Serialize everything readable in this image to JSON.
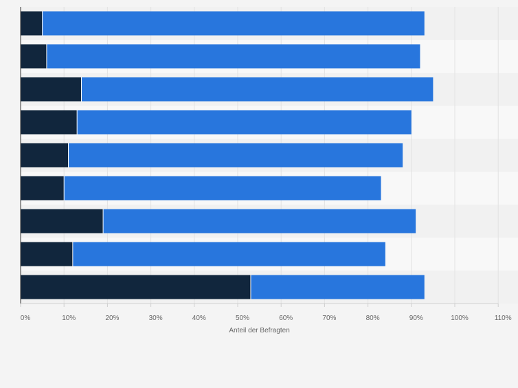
{
  "chart_data": {
    "type": "bar",
    "orientation": "horizontal",
    "stacked": true,
    "categories": [
      "",
      "",
      "",
      "",
      "",
      "",
      "",
      "",
      ""
    ],
    "series": [
      {
        "values": [
          5,
          6,
          14,
          13,
          11,
          10,
          19,
          12,
          53
        ]
      },
      {
        "values": [
          88,
          86,
          81,
          77,
          77,
          73,
          72,
          72,
          40
        ]
      }
    ],
    "xlabel": "Anteil der Befragten",
    "xlim": [
      0,
      110
    ],
    "xticks": [
      "0%",
      "10%",
      "20%",
      "30%",
      "40%",
      "50%",
      "60%",
      "70%",
      "80%",
      "90%",
      "100%",
      "110%"
    ],
    "grid": true,
    "colors": {
      "series_0": "#11263d",
      "series_1": "#2876dd",
      "band_a": "#f1f1f1",
      "band_b": "#f8f8f8",
      "background": "#f4f4f4"
    }
  }
}
